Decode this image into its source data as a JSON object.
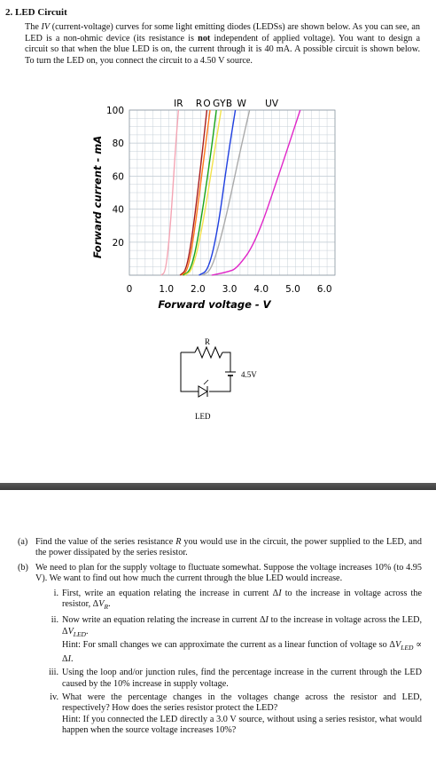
{
  "problem": {
    "title": "2. LED Circuit",
    "intro": [
      {
        "t": "The "
      },
      {
        "t": "IV",
        "i": true
      },
      {
        "t": " (current-voltage) curves for some light emitting diodes (LEDSs) are shown below. As you can see, an LED is a non-ohmic device (its resistance is "
      },
      {
        "t": "not",
        "b": true
      },
      {
        "t": " independent of applied voltage). You want to design a circuit so that when the blue LED is on, the current through it is 40 mA. A possible circuit is shown below. To turn the LED on, you connect the circuit to a 4.50 V source."
      }
    ]
  },
  "chart_data": {
    "type": "line",
    "xlabel": "Forward voltage - V",
    "ylabel": "Forward current - mA",
    "xlim": [
      0,
      6.5
    ],
    "ylim": [
      0,
      100
    ],
    "x_ticks": [
      "0",
      "1.0",
      "2.0",
      "3.0",
      "4.0",
      "5.0",
      "6.0"
    ],
    "y_ticks": [
      "20",
      "40",
      "60",
      "80",
      "100"
    ],
    "top_labels": [
      "IR",
      "R",
      "O",
      "G",
      "Y",
      "B",
      "W",
      "UV"
    ],
    "series": [
      {
        "name": "IR",
        "color": "#f4a5b4",
        "points": [
          [
            1.0,
            0
          ],
          [
            1.15,
            2
          ],
          [
            1.3,
            30
          ],
          [
            1.45,
            75
          ],
          [
            1.55,
            100
          ]
        ]
      },
      {
        "name": "R",
        "color": "#a81c1c",
        "points": [
          [
            1.6,
            0
          ],
          [
            1.8,
            3
          ],
          [
            2.0,
            25
          ],
          [
            2.25,
            65
          ],
          [
            2.45,
            100
          ]
        ]
      },
      {
        "name": "O",
        "color": "#ff7a1a",
        "points": [
          [
            1.65,
            0
          ],
          [
            1.85,
            3
          ],
          [
            2.05,
            25
          ],
          [
            2.35,
            70
          ],
          [
            2.55,
            100
          ]
        ]
      },
      {
        "name": "G",
        "color": "#18a518",
        "points": [
          [
            1.7,
            0
          ],
          [
            1.95,
            3
          ],
          [
            2.2,
            25
          ],
          [
            2.55,
            70
          ],
          [
            2.75,
            100
          ]
        ]
      },
      {
        "name": "Y",
        "color": "#f2e24a",
        "points": [
          [
            1.75,
            0
          ],
          [
            2.0,
            3
          ],
          [
            2.3,
            28
          ],
          [
            2.65,
            70
          ],
          [
            2.9,
            100
          ]
        ]
      },
      {
        "name": "B",
        "color": "#1f3fe0",
        "points": [
          [
            2.2,
            0
          ],
          [
            2.5,
            3
          ],
          [
            2.8,
            28
          ],
          [
            3.1,
            70
          ],
          [
            3.35,
            100
          ]
        ]
      },
      {
        "name": "W",
        "color": "#aaaaaa",
        "points": [
          [
            2.3,
            0
          ],
          [
            2.6,
            3
          ],
          [
            3.0,
            30
          ],
          [
            3.5,
            75
          ],
          [
            3.8,
            100
          ]
        ]
      },
      {
        "name": "UV",
        "color": "#e025c8",
        "points": [
          [
            2.6,
            0
          ],
          [
            3.1,
            2
          ],
          [
            3.4,
            4
          ],
          [
            4.0,
            20
          ],
          [
            4.8,
            65
          ],
          [
            5.4,
            100
          ]
        ]
      }
    ]
  },
  "circuit": {
    "resistor_label": "R",
    "source_label": "4.5V",
    "led_label": "LED"
  },
  "questions": [
    {
      "label": "(a)",
      "parts": [
        {
          "t": "Find the value of the series resistance "
        },
        {
          "t": "R",
          "i": true
        },
        {
          "t": " you would use in the circuit, the power supplied to the LED, and the power dissipated by the series resistor."
        }
      ]
    },
    {
      "label": "(b)",
      "parts": [
        {
          "t": "We need to plan for the supply voltage to fluctuate somewhat.  Suppose the voltage increases 10% (to 4.95 V). We want to find out how much the current through the blue LED would increase."
        }
      ]
    }
  ],
  "subquestions": [
    {
      "label": "i.",
      "parts": [
        {
          "t": "First, write an equation relating the increase in current Δ"
        },
        {
          "t": "I",
          "i": true
        },
        {
          "t": " to the increase in voltage across the resistor, Δ"
        },
        {
          "t": "V",
          "i": true
        },
        {
          "t": "R",
          "sub": true
        },
        {
          "t": "."
        }
      ]
    },
    {
      "label": "ii.",
      "parts": [
        {
          "t": "Now write an equation relating the increase in current Δ"
        },
        {
          "t": "I",
          "i": true
        },
        {
          "t": " to the increase in voltage across the LED, Δ"
        },
        {
          "t": "V",
          "i": true
        },
        {
          "t": "LED",
          "sub": true
        },
        {
          "t": "."
        }
      ],
      "hint": [
        {
          "t": "Hint: For small changes we can approximate the current as a linear function of voltage so Δ"
        },
        {
          "t": "V",
          "i": true
        },
        {
          "t": "LED",
          "sub": true
        },
        {
          "t": " ∝ Δ"
        },
        {
          "t": "I",
          "i": true
        },
        {
          "t": "."
        }
      ]
    },
    {
      "label": "iii.",
      "parts": [
        {
          "t": "Using the loop and/or junction rules, find the percentage increase in the current through the LED caused by the 10% increase in supply voltage."
        }
      ]
    },
    {
      "label": "iv.",
      "parts": [
        {
          "t": "What were the percentage changes in the voltages change across the resistor and LED, respectively? How does the series resistor protect the LED?"
        }
      ],
      "hint": [
        {
          "t": "Hint: If you connected the LED directly a 3.0 V source, without using a series resistor, what would happen when the source voltage increases 10%?"
        }
      ]
    }
  ]
}
